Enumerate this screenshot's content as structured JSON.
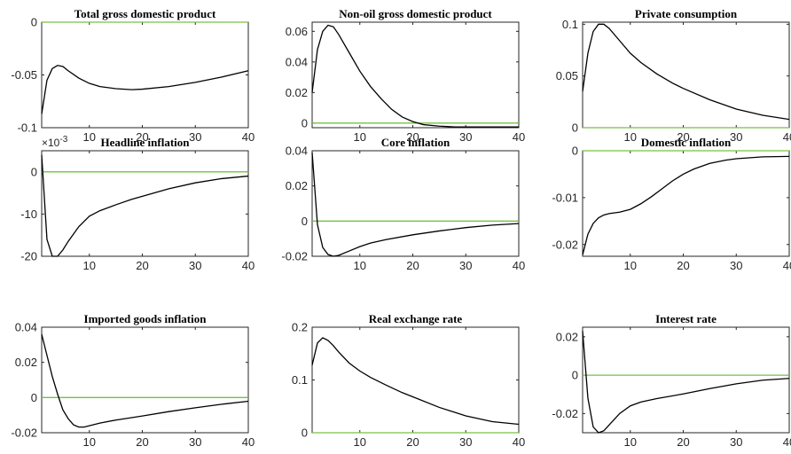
{
  "chart_data": [
    {
      "type": "line",
      "title": "Total gross domestic product",
      "xlim": [
        1,
        40
      ],
      "ylim": [
        -0.1,
        0
      ],
      "xticks": [
        10,
        20,
        30,
        40
      ],
      "xtick_labels": [
        "10",
        "20",
        "30",
        "40"
      ],
      "yticks": [
        -0.1,
        -0.05,
        0
      ],
      "ytick_labels": [
        "-0.1",
        "-0.05",
        "0"
      ],
      "baseline": 0,
      "series": [
        {
          "x": [
            1,
            2,
            3,
            4,
            5,
            6,
            8,
            10,
            12,
            15,
            18,
            20,
            25,
            30,
            35,
            40
          ],
          "y": [
            -0.087,
            -0.055,
            -0.044,
            -0.041,
            -0.042,
            -0.046,
            -0.053,
            -0.058,
            -0.061,
            -0.063,
            -0.064,
            -0.0635,
            -0.061,
            -0.057,
            -0.052,
            -0.046
          ]
        }
      ]
    },
    {
      "type": "line",
      "title": "Non-oil gross domestic product",
      "xlim": [
        1,
        40
      ],
      "ylim": [
        -0.003,
        0.066
      ],
      "xticks": [
        10,
        20,
        30,
        40
      ],
      "xtick_labels": [
        "10",
        "20",
        "30",
        "40"
      ],
      "yticks": [
        0,
        0.02,
        0.04,
        0.06
      ],
      "ytick_labels": [
        "0",
        "0.02",
        "0.04",
        "0.06"
      ],
      "baseline": 0,
      "series": [
        {
          "x": [
            1,
            2,
            3,
            4,
            5,
            6,
            8,
            10,
            12,
            14,
            16,
            18,
            20,
            22,
            25,
            28,
            30,
            35,
            40
          ],
          "y": [
            0.02,
            0.048,
            0.06,
            0.064,
            0.063,
            0.058,
            0.046,
            0.034,
            0.024,
            0.016,
            0.009,
            0.004,
            0.001,
            -0.001,
            -0.002,
            -0.0025,
            -0.0025,
            -0.0025,
            -0.0025
          ]
        }
      ]
    },
    {
      "type": "line",
      "title": "Private consumption",
      "xlim": [
        1,
        40
      ],
      "ylim": [
        0,
        0.102
      ],
      "xticks": [
        10,
        20,
        30,
        40
      ],
      "xtick_labels": [
        "10",
        "20",
        "30",
        "40"
      ],
      "yticks": [
        0,
        0.05,
        0.1
      ],
      "ytick_labels": [
        "0",
        "0.05",
        "0.1"
      ],
      "baseline": 0,
      "series": [
        {
          "x": [
            1,
            2,
            3,
            4,
            5,
            6,
            8,
            10,
            12,
            15,
            18,
            20,
            25,
            30,
            35,
            40
          ],
          "y": [
            0.035,
            0.072,
            0.093,
            0.1,
            0.1,
            0.096,
            0.084,
            0.072,
            0.063,
            0.052,
            0.043,
            0.038,
            0.027,
            0.018,
            0.012,
            0.008
          ]
        }
      ]
    },
    {
      "type": "line",
      "title": "Headline inflation",
      "exponent_label": "×10",
      "exponent_power": "-3",
      "xlim": [
        1,
        40
      ],
      "ylim": [
        -20,
        5
      ],
      "xticks": [
        10,
        20,
        30,
        40
      ],
      "xtick_labels": [
        "10",
        "20",
        "30",
        "40"
      ],
      "yticks": [
        -20,
        -10,
        0
      ],
      "ytick_labels": [
        "-20",
        "-10",
        "0"
      ],
      "baseline": 0,
      "series": [
        {
          "x": [
            1,
            2,
            3,
            4,
            5,
            6,
            8,
            10,
            12,
            15,
            18,
            20,
            25,
            30,
            35,
            40
          ],
          "y": [
            4,
            -16,
            -20,
            -20,
            -18.5,
            -16.5,
            -13,
            -10.5,
            -9.2,
            -7.8,
            -6.5,
            -5.8,
            -4,
            -2.6,
            -1.6,
            -1
          ]
        }
      ]
    },
    {
      "type": "line",
      "title": "Core inflation",
      "xlim": [
        1,
        40
      ],
      "ylim": [
        -0.02,
        0.04
      ],
      "xticks": [
        10,
        20,
        30,
        40
      ],
      "xtick_labels": [
        "10",
        "20",
        "30",
        "40"
      ],
      "yticks": [
        -0.02,
        0,
        0.02,
        0.04
      ],
      "ytick_labels": [
        "-0.02",
        "0",
        "0.02",
        "0.04"
      ],
      "baseline": 0,
      "series": [
        {
          "x": [
            1,
            2,
            3,
            4,
            5,
            6,
            8,
            10,
            12,
            15,
            20,
            25,
            30,
            35,
            40
          ],
          "y": [
            0.039,
            -0.002,
            -0.015,
            -0.019,
            -0.02,
            -0.0195,
            -0.017,
            -0.0145,
            -0.0125,
            -0.0105,
            -0.0078,
            -0.0056,
            -0.0037,
            -0.0023,
            -0.0014
          ]
        }
      ]
    },
    {
      "type": "line",
      "title": "Domestic inflation",
      "xlim": [
        1,
        40
      ],
      "ylim": [
        -0.0225,
        0
      ],
      "xticks": [
        10,
        20,
        30,
        40
      ],
      "xtick_labels": [
        "10",
        "20",
        "30",
        "40"
      ],
      "yticks": [
        -0.02,
        -0.01,
        0
      ],
      "ytick_labels": [
        "-0.02",
        "-0.01",
        "0"
      ],
      "baseline": 0,
      "series": [
        {
          "x": [
            1,
            2,
            3,
            4,
            5,
            6,
            8,
            10,
            12,
            14,
            16,
            18,
            20,
            22,
            25,
            28,
            30,
            35,
            40
          ],
          "y": [
            -0.0222,
            -0.0178,
            -0.0155,
            -0.0143,
            -0.0137,
            -0.0134,
            -0.0131,
            -0.0125,
            -0.0113,
            -0.0098,
            -0.0081,
            -0.0064,
            -0.005,
            -0.0039,
            -0.0027,
            -0.002,
            -0.0017,
            -0.0013,
            -0.0012
          ]
        }
      ]
    },
    {
      "type": "line",
      "title": "Imported goods inflation",
      "xlim": [
        1,
        40
      ],
      "ylim": [
        -0.02,
        0.04
      ],
      "xticks": [
        10,
        20,
        30,
        40
      ],
      "xtick_labels": [
        "10",
        "20",
        "30",
        "40"
      ],
      "yticks": [
        -0.02,
        0,
        0.02,
        0.04
      ],
      "ytick_labels": [
        "-0.02",
        "0",
        "0.02",
        "0.04"
      ],
      "baseline": 0,
      "series": [
        {
          "x": [
            1,
            2,
            3,
            4,
            5,
            6,
            7,
            8,
            9,
            10,
            12,
            15,
            20,
            25,
            30,
            35,
            40
          ],
          "y": [
            0.036,
            0.024,
            0.012,
            0.002,
            -0.007,
            -0.012,
            -0.0155,
            -0.0168,
            -0.0168,
            -0.016,
            -0.0145,
            -0.0128,
            -0.0105,
            -0.008,
            -0.0058,
            -0.0038,
            -0.0021
          ]
        }
      ]
    },
    {
      "type": "line",
      "title": "Real exchange rate",
      "xlim": [
        1,
        40
      ],
      "ylim": [
        0,
        0.2
      ],
      "xticks": [
        10,
        20,
        30,
        40
      ],
      "xtick_labels": [
        "10",
        "20",
        "30",
        "40"
      ],
      "yticks": [
        0,
        0.1,
        0.2
      ],
      "ytick_labels": [
        "0",
        "0.1",
        "0.2"
      ],
      "baseline": 0,
      "series": [
        {
          "x": [
            1,
            2,
            3,
            4,
            5,
            6,
            8,
            10,
            12,
            15,
            18,
            20,
            25,
            30,
            35,
            40
          ],
          "y": [
            0.128,
            0.17,
            0.18,
            0.175,
            0.165,
            0.153,
            0.132,
            0.117,
            0.105,
            0.09,
            0.076,
            0.068,
            0.048,
            0.032,
            0.021,
            0.016
          ]
        }
      ]
    },
    {
      "type": "line",
      "title": "Interest rate",
      "xlim": [
        1,
        40
      ],
      "ylim": [
        -0.03,
        0.025
      ],
      "xticks": [
        10,
        20,
        30,
        40
      ],
      "xtick_labels": [
        "10",
        "20",
        "30",
        "40"
      ],
      "yticks": [
        -0.02,
        0,
        0.02
      ],
      "ytick_labels": [
        "-0.02",
        "0",
        "0.02"
      ],
      "baseline": 0,
      "series": [
        {
          "x": [
            1,
            2,
            3,
            4,
            5,
            6,
            8,
            10,
            12,
            15,
            20,
            25,
            30,
            35,
            40
          ],
          "y": [
            0.023,
            -0.012,
            -0.027,
            -0.03,
            -0.029,
            -0.026,
            -0.02,
            -0.016,
            -0.014,
            -0.0122,
            -0.0098,
            -0.007,
            -0.0045,
            -0.0026,
            -0.0017
          ]
        }
      ]
    }
  ]
}
